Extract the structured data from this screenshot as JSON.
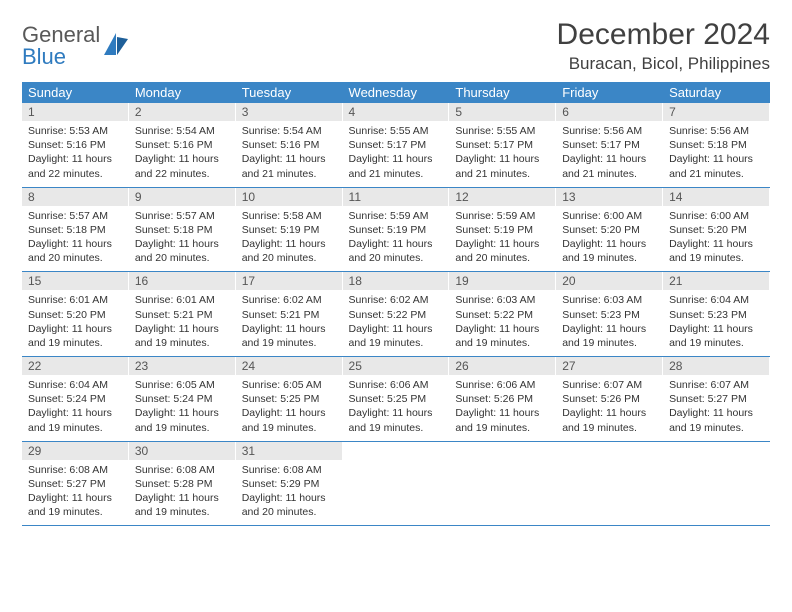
{
  "brand": {
    "word1": "General",
    "word2": "Blue"
  },
  "title": "December 2024",
  "location": "Buracan, Bicol, Philippines",
  "colors": {
    "header_bg": "#3b86c6",
    "header_text": "#ffffff",
    "daynum_bg": "#e8e8e8",
    "rule": "#3b86c6",
    "text": "#333333",
    "title_color": "#404040",
    "brand_gray": "#595959",
    "brand_blue": "#2f7bbf"
  },
  "typography": {
    "title_fontsize": 30,
    "location_fontsize": 17,
    "dow_fontsize": 13,
    "daynum_fontsize": 12,
    "body_fontsize": 10.5
  },
  "dow": [
    "Sunday",
    "Monday",
    "Tuesday",
    "Wednesday",
    "Thursday",
    "Friday",
    "Saturday"
  ],
  "weeks": [
    [
      {
        "n": "1",
        "sr": "Sunrise: 5:53 AM",
        "ss": "Sunset: 5:16 PM",
        "d1": "Daylight: 11 hours",
        "d2": "and 22 minutes."
      },
      {
        "n": "2",
        "sr": "Sunrise: 5:54 AM",
        "ss": "Sunset: 5:16 PM",
        "d1": "Daylight: 11 hours",
        "d2": "and 22 minutes."
      },
      {
        "n": "3",
        "sr": "Sunrise: 5:54 AM",
        "ss": "Sunset: 5:16 PM",
        "d1": "Daylight: 11 hours",
        "d2": "and 21 minutes."
      },
      {
        "n": "4",
        "sr": "Sunrise: 5:55 AM",
        "ss": "Sunset: 5:17 PM",
        "d1": "Daylight: 11 hours",
        "d2": "and 21 minutes."
      },
      {
        "n": "5",
        "sr": "Sunrise: 5:55 AM",
        "ss": "Sunset: 5:17 PM",
        "d1": "Daylight: 11 hours",
        "d2": "and 21 minutes."
      },
      {
        "n": "6",
        "sr": "Sunrise: 5:56 AM",
        "ss": "Sunset: 5:17 PM",
        "d1": "Daylight: 11 hours",
        "d2": "and 21 minutes."
      },
      {
        "n": "7",
        "sr": "Sunrise: 5:56 AM",
        "ss": "Sunset: 5:18 PM",
        "d1": "Daylight: 11 hours",
        "d2": "and 21 minutes."
      }
    ],
    [
      {
        "n": "8",
        "sr": "Sunrise: 5:57 AM",
        "ss": "Sunset: 5:18 PM",
        "d1": "Daylight: 11 hours",
        "d2": "and 20 minutes."
      },
      {
        "n": "9",
        "sr": "Sunrise: 5:57 AM",
        "ss": "Sunset: 5:18 PM",
        "d1": "Daylight: 11 hours",
        "d2": "and 20 minutes."
      },
      {
        "n": "10",
        "sr": "Sunrise: 5:58 AM",
        "ss": "Sunset: 5:19 PM",
        "d1": "Daylight: 11 hours",
        "d2": "and 20 minutes."
      },
      {
        "n": "11",
        "sr": "Sunrise: 5:59 AM",
        "ss": "Sunset: 5:19 PM",
        "d1": "Daylight: 11 hours",
        "d2": "and 20 minutes."
      },
      {
        "n": "12",
        "sr": "Sunrise: 5:59 AM",
        "ss": "Sunset: 5:19 PM",
        "d1": "Daylight: 11 hours",
        "d2": "and 20 minutes."
      },
      {
        "n": "13",
        "sr": "Sunrise: 6:00 AM",
        "ss": "Sunset: 5:20 PM",
        "d1": "Daylight: 11 hours",
        "d2": "and 19 minutes."
      },
      {
        "n": "14",
        "sr": "Sunrise: 6:00 AM",
        "ss": "Sunset: 5:20 PM",
        "d1": "Daylight: 11 hours",
        "d2": "and 19 minutes."
      }
    ],
    [
      {
        "n": "15",
        "sr": "Sunrise: 6:01 AM",
        "ss": "Sunset: 5:20 PM",
        "d1": "Daylight: 11 hours",
        "d2": "and 19 minutes."
      },
      {
        "n": "16",
        "sr": "Sunrise: 6:01 AM",
        "ss": "Sunset: 5:21 PM",
        "d1": "Daylight: 11 hours",
        "d2": "and 19 minutes."
      },
      {
        "n": "17",
        "sr": "Sunrise: 6:02 AM",
        "ss": "Sunset: 5:21 PM",
        "d1": "Daylight: 11 hours",
        "d2": "and 19 minutes."
      },
      {
        "n": "18",
        "sr": "Sunrise: 6:02 AM",
        "ss": "Sunset: 5:22 PM",
        "d1": "Daylight: 11 hours",
        "d2": "and 19 minutes."
      },
      {
        "n": "19",
        "sr": "Sunrise: 6:03 AM",
        "ss": "Sunset: 5:22 PM",
        "d1": "Daylight: 11 hours",
        "d2": "and 19 minutes."
      },
      {
        "n": "20",
        "sr": "Sunrise: 6:03 AM",
        "ss": "Sunset: 5:23 PM",
        "d1": "Daylight: 11 hours",
        "d2": "and 19 minutes."
      },
      {
        "n": "21",
        "sr": "Sunrise: 6:04 AM",
        "ss": "Sunset: 5:23 PM",
        "d1": "Daylight: 11 hours",
        "d2": "and 19 minutes."
      }
    ],
    [
      {
        "n": "22",
        "sr": "Sunrise: 6:04 AM",
        "ss": "Sunset: 5:24 PM",
        "d1": "Daylight: 11 hours",
        "d2": "and 19 minutes."
      },
      {
        "n": "23",
        "sr": "Sunrise: 6:05 AM",
        "ss": "Sunset: 5:24 PM",
        "d1": "Daylight: 11 hours",
        "d2": "and 19 minutes."
      },
      {
        "n": "24",
        "sr": "Sunrise: 6:05 AM",
        "ss": "Sunset: 5:25 PM",
        "d1": "Daylight: 11 hours",
        "d2": "and 19 minutes."
      },
      {
        "n": "25",
        "sr": "Sunrise: 6:06 AM",
        "ss": "Sunset: 5:25 PM",
        "d1": "Daylight: 11 hours",
        "d2": "and 19 minutes."
      },
      {
        "n": "26",
        "sr": "Sunrise: 6:06 AM",
        "ss": "Sunset: 5:26 PM",
        "d1": "Daylight: 11 hours",
        "d2": "and 19 minutes."
      },
      {
        "n": "27",
        "sr": "Sunrise: 6:07 AM",
        "ss": "Sunset: 5:26 PM",
        "d1": "Daylight: 11 hours",
        "d2": "and 19 minutes."
      },
      {
        "n": "28",
        "sr": "Sunrise: 6:07 AM",
        "ss": "Sunset: 5:27 PM",
        "d1": "Daylight: 11 hours",
        "d2": "and 19 minutes."
      }
    ],
    [
      {
        "n": "29",
        "sr": "Sunrise: 6:08 AM",
        "ss": "Sunset: 5:27 PM",
        "d1": "Daylight: 11 hours",
        "d2": "and 19 minutes."
      },
      {
        "n": "30",
        "sr": "Sunrise: 6:08 AM",
        "ss": "Sunset: 5:28 PM",
        "d1": "Daylight: 11 hours",
        "d2": "and 19 minutes."
      },
      {
        "n": "31",
        "sr": "Sunrise: 6:08 AM",
        "ss": "Sunset: 5:29 PM",
        "d1": "Daylight: 11 hours",
        "d2": "and 20 minutes."
      },
      {
        "empty": true
      },
      {
        "empty": true
      },
      {
        "empty": true
      },
      {
        "empty": true
      }
    ]
  ]
}
